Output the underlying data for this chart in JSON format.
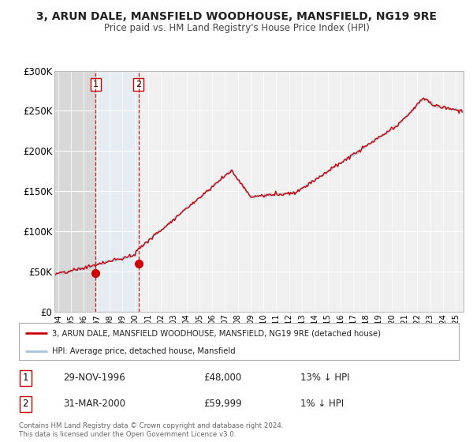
{
  "title": "3, ARUN DALE, MANSFIELD WOODHOUSE, MANSFIELD, NG19 9RE",
  "subtitle": "Price paid vs. HM Land Registry's House Price Index (HPI)",
  "ylim": [
    0,
    300000
  ],
  "yticks": [
    0,
    50000,
    100000,
    150000,
    200000,
    250000,
    300000
  ],
  "ytick_labels": [
    "£0",
    "£50K",
    "£100K",
    "£150K",
    "£200K",
    "£250K",
    "£300K"
  ],
  "xlim_start": 1993.7,
  "xlim_end": 2025.6,
  "transaction1_date": 1996.91,
  "transaction1_price": 48000,
  "transaction1_label": "29-NOV-1996",
  "transaction1_amount": "£48,000",
  "transaction1_hpi": "13% ↓ HPI",
  "transaction2_date": 2000.25,
  "transaction2_price": 59999,
  "transaction2_label": "31-MAR-2000",
  "transaction2_amount": "£59,999",
  "transaction2_hpi": "1% ↓ HPI",
  "hpi_color": "#a8c4e0",
  "price_color": "#cc0000",
  "shaded_region_color": "#dce9f5",
  "legend_label1": "3, ARUN DALE, MANSFIELD WOODHOUSE, MANSFIELD, NG19 9RE (detached house)",
  "legend_label2": "HPI: Average price, detached house, Mansfield",
  "footer1": "Contains HM Land Registry data © Crown copyright and database right 2024.",
  "footer2": "This data is licensed under the Open Government Licence v3.0.",
  "background_color": "#ffffff",
  "plot_bg_color": "#f0f0f0"
}
